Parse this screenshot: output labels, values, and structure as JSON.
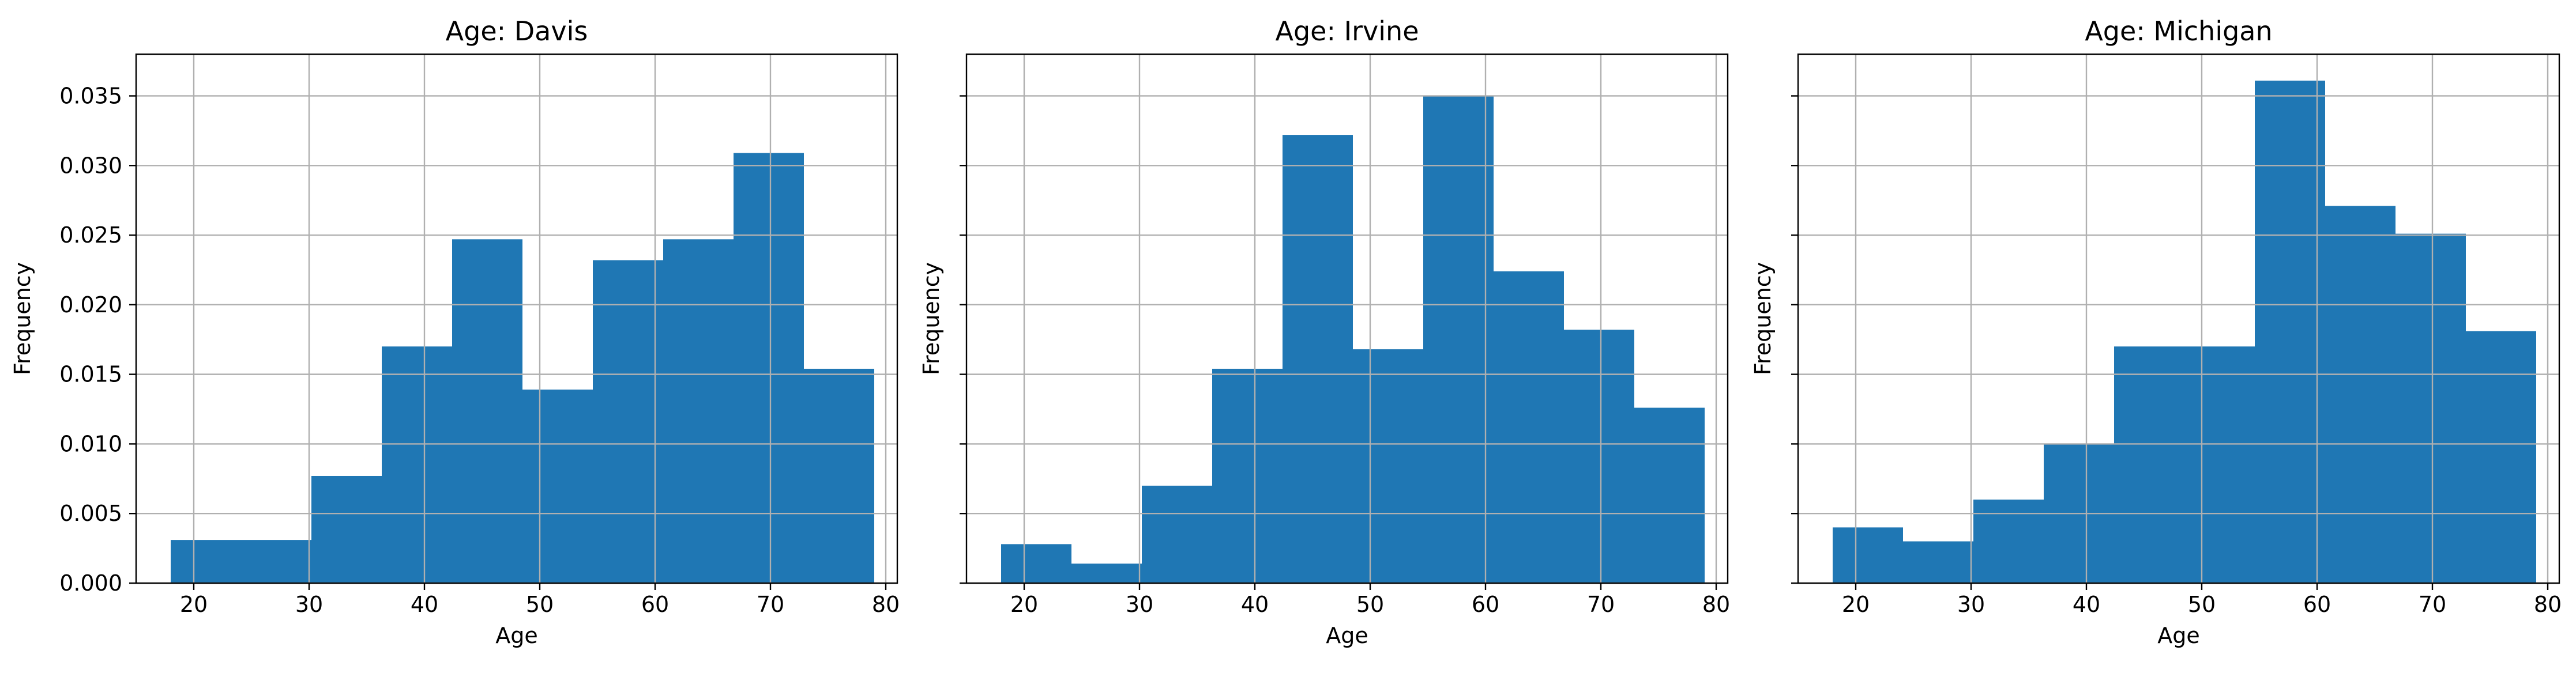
{
  "ylabel_ticks": [
    "0.000",
    "0.005",
    "0.010",
    "0.015",
    "0.020",
    "0.025",
    "0.030",
    "0.035"
  ],
  "colors": {
    "bar": "#1f77b4",
    "grid": "#b0b0b0",
    "axes": "#000000"
  },
  "chart_data": [
    {
      "type": "bar",
      "title": "Age: Davis",
      "xlabel": "Age",
      "ylabel": "Frequency",
      "xlim": [
        15,
        81
      ],
      "ylim": [
        0,
        0.038
      ],
      "xticks": [
        20,
        30,
        40,
        50,
        60,
        70,
        80
      ],
      "yticks": [
        0,
        0.005,
        0.01,
        0.015,
        0.02,
        0.025,
        0.03,
        0.035
      ],
      "grid": true,
      "bin_edges": [
        18,
        24.1,
        30.2,
        36.3,
        42.4,
        48.5,
        54.6,
        60.7,
        66.8,
        72.9,
        79
      ],
      "values": [
        0.0031,
        0.0031,
        0.0077,
        0.017,
        0.0247,
        0.0139,
        0.0232,
        0.0247,
        0.0309,
        0.0154
      ]
    },
    {
      "type": "bar",
      "title": "Age: Irvine",
      "xlabel": "Age",
      "ylabel": "Frequency",
      "xlim": [
        15,
        81
      ],
      "ylim": [
        0,
        0.038
      ],
      "xticks": [
        20,
        30,
        40,
        50,
        60,
        70,
        80
      ],
      "yticks": [
        0,
        0.005,
        0.01,
        0.015,
        0.02,
        0.025,
        0.03,
        0.035
      ],
      "grid": true,
      "bin_edges": [
        18,
        24.1,
        30.2,
        36.3,
        42.4,
        48.5,
        54.6,
        60.7,
        66.8,
        72.9,
        79
      ],
      "values": [
        0.0028,
        0.0014,
        0.007,
        0.0154,
        0.0322,
        0.0168,
        0.035,
        0.0224,
        0.0182,
        0.0126
      ]
    },
    {
      "type": "bar",
      "title": "Age: Michigan",
      "xlabel": "Age",
      "ylabel": "Frequency",
      "xlim": [
        15,
        81
      ],
      "ylim": [
        0,
        0.038
      ],
      "xticks": [
        20,
        30,
        40,
        50,
        60,
        70,
        80
      ],
      "yticks": [
        0,
        0.005,
        0.01,
        0.015,
        0.02,
        0.025,
        0.03,
        0.035
      ],
      "grid": true,
      "bin_edges": [
        18,
        24.1,
        30.2,
        36.3,
        42.4,
        48.5,
        54.6,
        60.7,
        66.8,
        72.9,
        79
      ],
      "values": [
        0.004,
        0.003,
        0.006,
        0.01,
        0.017,
        0.017,
        0.0361,
        0.0271,
        0.0251,
        0.0181
      ]
    }
  ]
}
